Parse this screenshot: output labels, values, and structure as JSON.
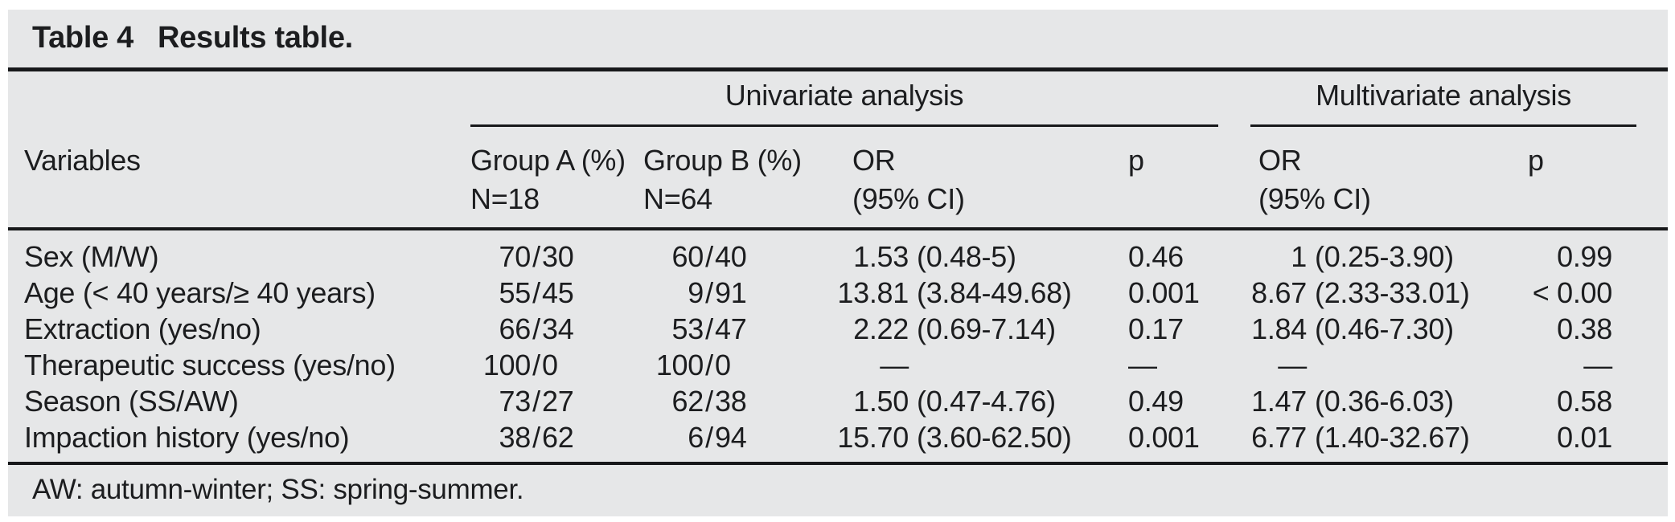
{
  "colors": {
    "panel_background": "#e6e7e8",
    "text": "#1c1d1f",
    "rule": "#17181a"
  },
  "title": {
    "label": "Table 4",
    "caption": "Results table."
  },
  "group_headers": {
    "univariate": "Univariate analysis",
    "multivariate": "Multivariate analysis"
  },
  "column_headers": {
    "variables": "Variables",
    "group_a": [
      "Group A (%)",
      "N=18"
    ],
    "group_b": [
      "Group B (%)",
      "N=64"
    ],
    "or": [
      "OR",
      "(95% CI)"
    ],
    "p": "p"
  },
  "rows": [
    {
      "variable": "Sex (M/W)",
      "a_num": "70",
      "a_den": "30",
      "b_num": "60",
      "b_den": "40",
      "uni_or": "1.53",
      "uni_ci": "(0.48-5)",
      "uni_p": "0.46",
      "m_or": "1",
      "m_ci": "(0.25-3.90)",
      "m_p": "0.99"
    },
    {
      "variable": "Age (< 40 years/≥ 40 years)",
      "a_num": "55",
      "a_den": "45",
      "b_num": "9",
      "b_den": "91",
      "uni_or": "13.81",
      "uni_ci": "(3.84-49.68)",
      "uni_p": "0.001",
      "m_or": "8.67",
      "m_ci": "(2.33-33.01)",
      "m_p": "< 0.00"
    },
    {
      "variable": "Extraction (yes/no)",
      "a_num": "66",
      "a_den": "34",
      "b_num": "53",
      "b_den": "47",
      "uni_or": "2.22",
      "uni_ci": "(0.69-7.14)",
      "uni_p": "0.17",
      "m_or": "1.84",
      "m_ci": "(0.46-7.30)",
      "m_p": "0.38"
    },
    {
      "variable": "Therapeutic success (yes/no)",
      "a_num": "100",
      "a_den": "0",
      "b_num": "100",
      "b_den": "0",
      "uni_or": "—",
      "uni_ci": "",
      "uni_p": "—",
      "m_or": "—",
      "m_ci": "",
      "m_p": "—"
    },
    {
      "variable": "Season (SS/AW)",
      "a_num": "73",
      "a_den": "27",
      "b_num": "62",
      "b_den": "38",
      "uni_or": "1.50",
      "uni_ci": "(0.47-4.76)",
      "uni_p": "0.49",
      "m_or": "1.47",
      "m_ci": "(0.36-6.03)",
      "m_p": "0.58"
    },
    {
      "variable": "Impaction history (yes/no)",
      "a_num": "38",
      "a_den": "62",
      "b_num": "6",
      "b_den": "94",
      "uni_or": "15.70",
      "uni_ci": "(3.60-62.50)",
      "uni_p": "0.001",
      "m_or": "6.77",
      "m_ci": "(1.40-32.67)",
      "m_p": "0.01"
    }
  ],
  "footnote": "AW: autumn-winter; SS: spring-summer."
}
